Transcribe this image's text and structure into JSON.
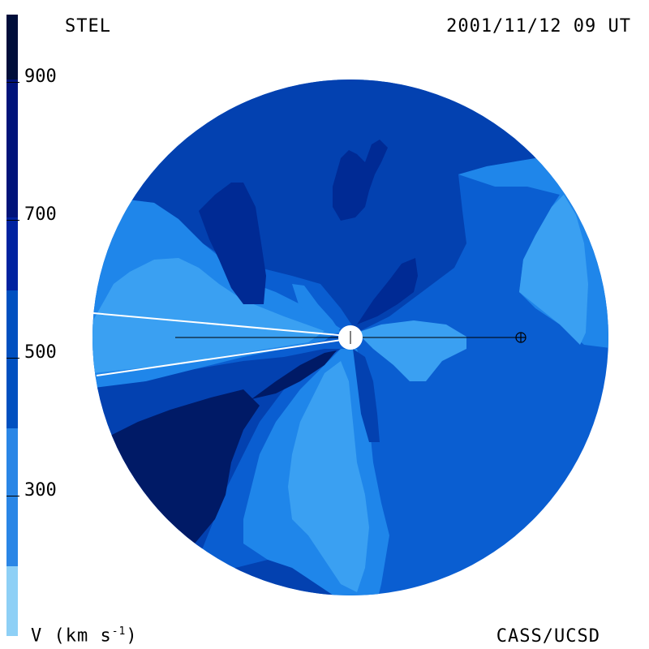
{
  "header": {
    "left_label": "STEL",
    "right_label": "2001/11/12 09 UT"
  },
  "footer": {
    "left_label": "V (km s",
    "left_label_sup": "-1",
    "left_label_end": ")",
    "right_label": "CASS/UCSD"
  },
  "colorbar": {
    "ticks": [
      "900",
      "700",
      "500",
      "300"
    ],
    "colors": [
      "#000e3a",
      "#00137a",
      "#0044b0",
      "#0a5ccc",
      "#2a86e6",
      "#3aa0f0",
      "#8ed0f6"
    ]
  },
  "palette": {
    "darkest": "#001a66",
    "dark": "#002a94",
    "mid_dark": "#0341b0",
    "mid": "#0a5ed1",
    "light": "#1f86ea",
    "lighter": "#3aa0f2"
  }
}
